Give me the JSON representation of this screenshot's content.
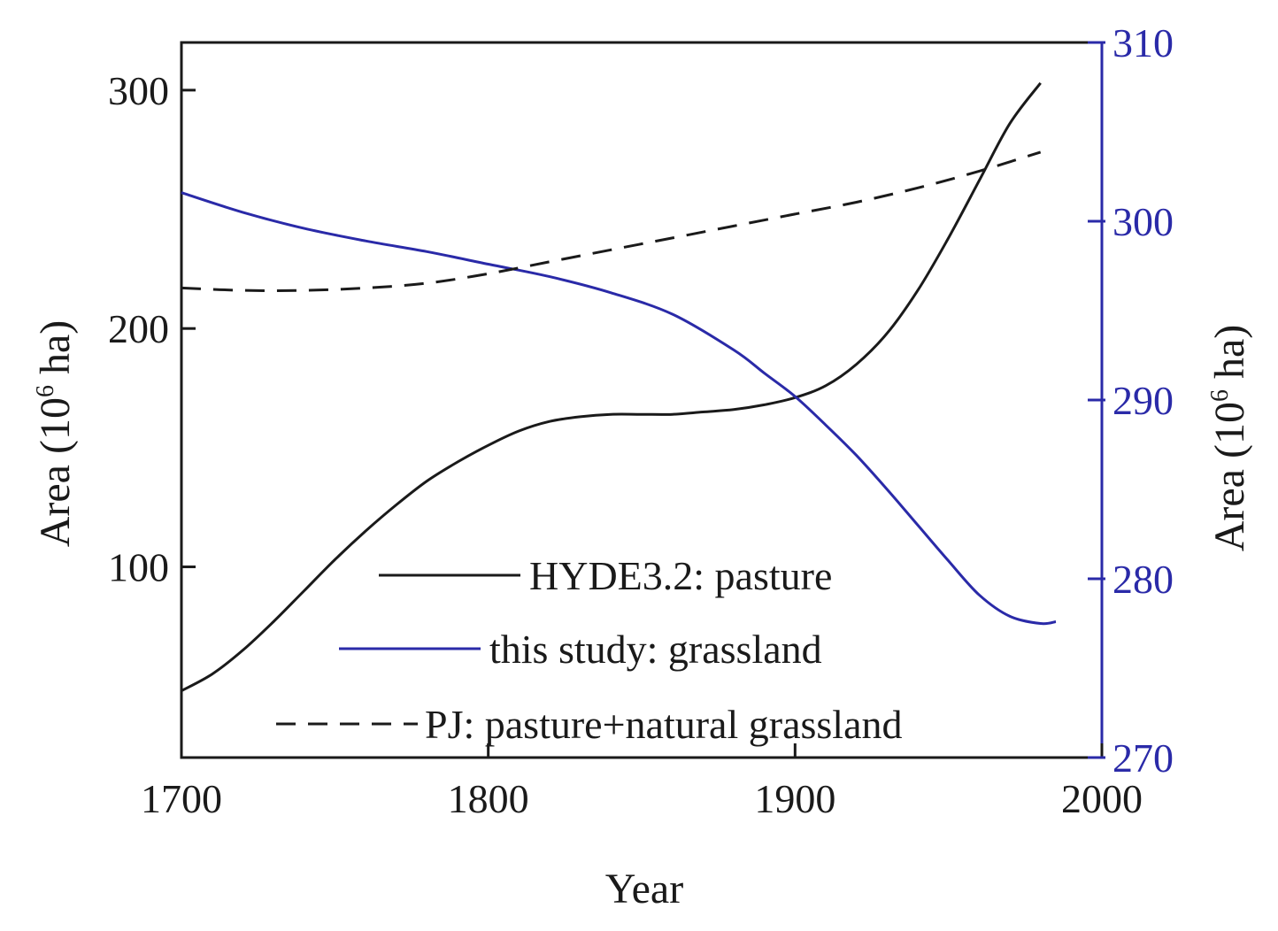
{
  "chart_data": {
    "type": "line",
    "title": "",
    "xlabel": "Year",
    "ylabel_left": {
      "main": "Area (10",
      "sup": "6",
      "tail": " ha)"
    },
    "ylabel_right": {
      "main": "Area (10",
      "sup": "6",
      "tail": " ha)"
    },
    "xlim": [
      1700,
      2000
    ],
    "ylim_left": [
      20,
      320
    ],
    "ylim_right": [
      270,
      310
    ],
    "x_ticks": [
      "1700",
      "1800",
      "1900",
      "2000"
    ],
    "y_ticks_left": [
      "100",
      "200",
      "300"
    ],
    "y_ticks_right": [
      "270",
      "280",
      "290",
      "300",
      "310"
    ],
    "legend_position": "bottom-center",
    "colors": {
      "axis_left": "#1a1a1a",
      "axis_right": "#2a2aa8",
      "hyde": "#1a1a1a",
      "study": "#2a2aa8",
      "pj": "#1a1a1a"
    },
    "series": [
      {
        "name": "HYDE3.2: pasture",
        "axis": "left",
        "style": "solid",
        "x": [
          1700,
          1710,
          1720,
          1730,
          1740,
          1750,
          1760,
          1770,
          1780,
          1790,
          1800,
          1810,
          1820,
          1830,
          1840,
          1850,
          1860,
          1870,
          1880,
          1890,
          1900,
          1910,
          1920,
          1930,
          1940,
          1950,
          1960,
          1970,
          1980
        ],
        "values": [
          48,
          55,
          65,
          77,
          90,
          103,
          115,
          126,
          136,
          144,
          151,
          157,
          161,
          163,
          164,
          164,
          164,
          165,
          166,
          168,
          171,
          176,
          185,
          198,
          216,
          238,
          262,
          286,
          303
        ]
      },
      {
        "name": "this study: grassland",
        "axis": "right",
        "style": "solid",
        "x": [
          1700,
          1720,
          1740,
          1760,
          1780,
          1800,
          1820,
          1840,
          1860,
          1880,
          1890,
          1900,
          1910,
          1920,
          1930,
          1940,
          1950,
          1960,
          1970,
          1980,
          1985
        ],
        "values": [
          301.6,
          300.5,
          299.6,
          298.9,
          298.3,
          297.6,
          296.9,
          296.0,
          294.8,
          292.8,
          291.5,
          290.2,
          288.6,
          286.9,
          285.0,
          283.0,
          281.0,
          279.1,
          277.9,
          277.5,
          277.6
        ]
      },
      {
        "name": "PJ: pasture+natural grassland",
        "axis": "left",
        "style": "dashed",
        "x": [
          1700,
          1720,
          1740,
          1760,
          1780,
          1800,
          1820,
          1840,
          1860,
          1880,
          1900,
          1920,
          1940,
          1960,
          1980
        ],
        "values": [
          217,
          216,
          216,
          217,
          219,
          223,
          228,
          233,
          238,
          243,
          248,
          253,
          259,
          266,
          274
        ]
      }
    ]
  }
}
